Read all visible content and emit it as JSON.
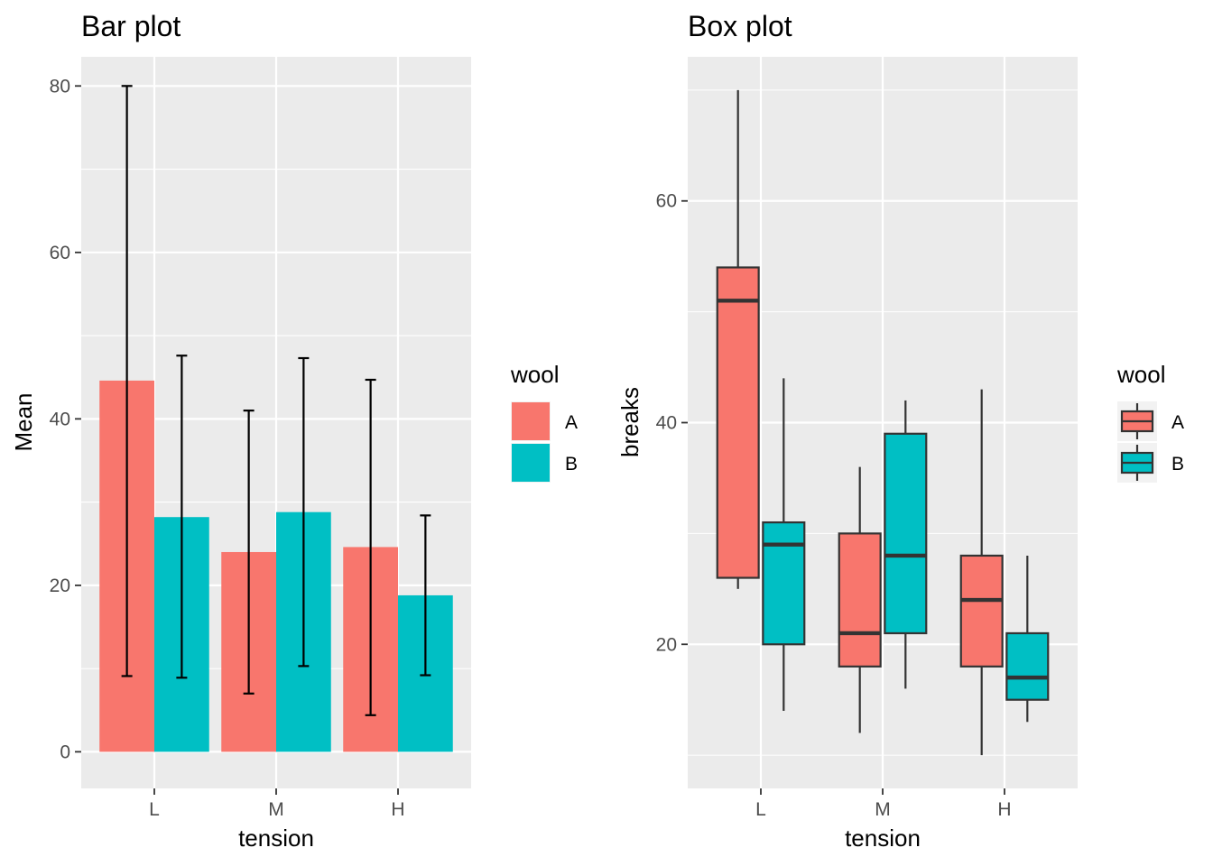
{
  "colors": {
    "A": "#F8766D",
    "B": "#00BFC4",
    "panel": "#EBEBEB",
    "grid": "#FFFFFF"
  },
  "chart_data": [
    {
      "type": "bar",
      "title": "Bar plot",
      "xlabel": "tension",
      "ylabel": "Mean",
      "categories": [
        "L",
        "M",
        "H"
      ],
      "ylim": [
        -4.4,
        83.5
      ],
      "yticks": [
        0,
        20,
        40,
        60,
        80
      ],
      "grid": true,
      "legend": {
        "title": "wool",
        "position": "right",
        "entries": [
          "A",
          "B"
        ]
      },
      "series": [
        {
          "name": "A",
          "values": [
            44.6,
            24.0,
            24.6
          ],
          "err_low": [
            9.1,
            7.0,
            4.4
          ],
          "err_high": [
            80.0,
            41.0,
            44.7
          ]
        },
        {
          "name": "B",
          "values": [
            28.2,
            28.8,
            18.8
          ],
          "err_low": [
            8.9,
            10.3,
            9.2
          ],
          "err_high": [
            47.6,
            47.3,
            28.4
          ]
        }
      ]
    },
    {
      "type": "box",
      "title": "Box plot",
      "xlabel": "tension",
      "ylabel": "breaks",
      "categories": [
        "L",
        "M",
        "H"
      ],
      "ylim": [
        7.0,
        73.0
      ],
      "yticks": [
        20,
        40,
        60
      ],
      "grid": true,
      "legend": {
        "title": "wool",
        "position": "right",
        "entries": [
          "A",
          "B"
        ]
      },
      "series": [
        {
          "name": "A",
          "boxes": [
            {
              "min": 25,
              "q1": 26,
              "median": 51,
              "q3": 54,
              "max": 70
            },
            {
              "min": 12,
              "q1": 18,
              "median": 21,
              "q3": 30,
              "max": 36
            },
            {
              "min": 10,
              "q1": 18,
              "median": 24,
              "q3": 28,
              "max": 43
            }
          ]
        },
        {
          "name": "B",
          "boxes": [
            {
              "min": 14,
              "q1": 20,
              "median": 29,
              "q3": 31,
              "max": 44
            },
            {
              "min": 16,
              "q1": 21,
              "median": 28,
              "q3": 39,
              "max": 42
            },
            {
              "min": 13,
              "q1": 15,
              "median": 17,
              "q3": 21,
              "max": 28
            }
          ]
        }
      ]
    }
  ]
}
